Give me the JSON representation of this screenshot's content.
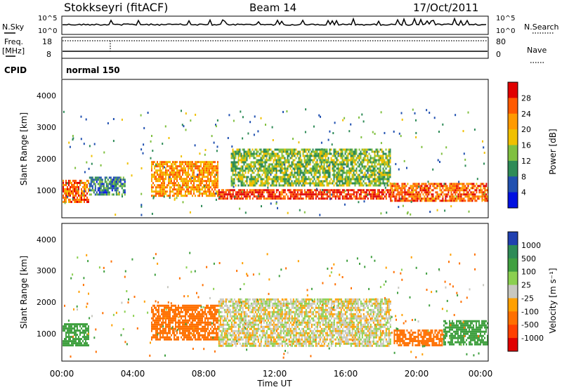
{
  "header": {
    "station": "Stokkseyri (fitACF)",
    "beam": "Beam 14",
    "date": "17/Oct/2011"
  },
  "strip": {
    "nsky_label": "N.Sky",
    "nsky_ticks": [
      "10^5",
      "10^0"
    ],
    "nsearch_label": "N.Search",
    "nsearch_ticks": [
      "10^5",
      "10^0"
    ],
    "freq_label": "Freq.",
    "freq_unit": "[MHz]",
    "freq_ticks": [
      "18",
      "8"
    ],
    "nave_label": "Nave",
    "nave_ticks": [
      "80",
      "0"
    ],
    "cpid_label": "CPID",
    "cpid_value": "normal 150"
  },
  "panels": {
    "ylabel": "Slant Range [km]",
    "yticks": [
      "4000",
      "3000",
      "2000",
      "1000"
    ],
    "xticks": [
      "00:00",
      "04:00",
      "08:00",
      "12:00",
      "16:00",
      "20:00",
      "00:00"
    ],
    "xlabel": "Time UT"
  },
  "power_scale": {
    "title": "Power [dB]",
    "labels": [
      "28",
      "24",
      "20",
      "16",
      "12",
      "8",
      "4"
    ],
    "colors": [
      "#e00000",
      "#ff5a00",
      "#ff9a00",
      "#f0c000",
      "#80c040",
      "#2e8b57",
      "#2050b0",
      "#0010e0"
    ]
  },
  "velocity_scale": {
    "title": "Velocity [m s⁻¹]",
    "labels": [
      "1000",
      "500",
      "100",
      "25",
      "-25",
      "-100",
      "-500",
      "-1000"
    ],
    "colors": [
      "#2040b0",
      "#2e8b57",
      "#40a040",
      "#8bd050",
      "#c8c8c0",
      "#ffa000",
      "#ff7000",
      "#ff4000",
      "#e00000"
    ]
  },
  "chart_data": [
    {
      "type": "heatmap",
      "title": "Power",
      "xlabel": "Time UT",
      "ylabel": "Slant Range [km]",
      "xlim": [
        "00:00",
        "24:00"
      ],
      "ylim": [
        180,
        4620
      ],
      "colorbar": {
        "label": "Power [dB]",
        "range": [
          0,
          32
        ],
        "ticks": [
          4,
          8,
          12,
          16,
          20,
          24,
          28
        ]
      },
      "bands": [
        {
          "t0": 0.0,
          "t1": 1.5,
          "r0": 700,
          "r1": 1400,
          "power_db": 25
        },
        {
          "t0": 1.5,
          "t1": 3.5,
          "r0": 900,
          "r1": 1500,
          "power_db": 9
        },
        {
          "t0": 5.0,
          "t1": 8.8,
          "r0": 900,
          "r1": 2000,
          "power_db": 22
        },
        {
          "t0": 8.8,
          "t1": 18.5,
          "r0": 800,
          "r1": 1100,
          "power_db": 29
        },
        {
          "t0": 9.5,
          "t1": 18.5,
          "r0": 1200,
          "r1": 2400,
          "power_db": 14
        },
        {
          "t0": 18.5,
          "t1": 24.0,
          "r0": 700,
          "r1": 1300,
          "power_db": 25
        }
      ]
    },
    {
      "type": "heatmap",
      "title": "Velocity",
      "xlabel": "Time UT",
      "ylabel": "Slant Range [km]",
      "xlim": [
        "00:00",
        "24:00"
      ],
      "ylim": [
        180,
        4620
      ],
      "colorbar": {
        "label": "Velocity [m s⁻¹]",
        "ticks": [
          1000,
          500,
          100,
          25,
          -25,
          -100,
          -500,
          -1000
        ]
      },
      "bands": [
        {
          "t0": 0.0,
          "t1": 1.5,
          "r0": 700,
          "r1": 1400,
          "velocity": 200
        },
        {
          "t0": 5.0,
          "t1": 8.8,
          "r0": 900,
          "r1": 2000,
          "velocity": -300
        },
        {
          "t0": 8.8,
          "t1": 18.5,
          "r0": 700,
          "r1": 2200,
          "velocity": 0
        },
        {
          "t0": 18.7,
          "t1": 21.5,
          "r0": 700,
          "r1": 1200,
          "velocity": -300
        },
        {
          "t0": 21.5,
          "t1": 24.0,
          "r0": 700,
          "r1": 1500,
          "velocity": 300
        }
      ]
    }
  ]
}
